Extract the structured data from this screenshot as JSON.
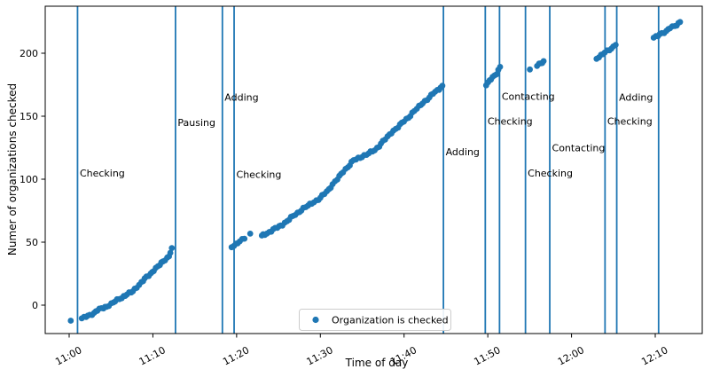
{
  "chart_data": {
    "type": "scatter",
    "title": "",
    "xlabel": "Time of day",
    "ylabel": "Numer of organizations checked",
    "legend": {
      "label": "Organization is checked",
      "position": "lower center",
      "marker": "dot",
      "marker_color": "#1f77b4"
    },
    "series_color": "#1f77b4",
    "grid": false,
    "x_axis": {
      "unit": "minutes after 11:00",
      "tick_minutes": [
        0,
        10,
        20,
        30,
        40,
        50,
        60,
        70
      ],
      "tick_labels": [
        "11:00",
        "11:10",
        "11:20",
        "11:30",
        "11:40",
        "11:50",
        "12:00",
        "12:10"
      ],
      "label_rotation_deg": 28
    },
    "y_axis": {
      "tick_values": [
        0,
        50,
        100,
        150,
        200
      ]
    },
    "xlim_minutes": [
      -2.9,
      75.7
    ],
    "ylim": [
      -22.7,
      237
    ],
    "series": [
      {
        "name": "Organization is checked",
        "segments": [
          {
            "name": "run-1",
            "points": [
              [
                1.5,
                -10.5
              ],
              [
                2.5,
                -8
              ],
              [
                3.4,
                -4
              ],
              [
                4.5,
                -1
              ],
              [
                5.5,
                3
              ],
              [
                6.5,
                7
              ],
              [
                7.6,
                11
              ],
              [
                8.6,
                18
              ],
              [
                9.7,
                25
              ],
              [
                10.8,
                32
              ],
              [
                11.9,
                39
              ],
              [
                12.3,
                44.5
              ]
            ]
          },
          {
            "name": "run-2",
            "points": [
              [
                19.4,
                46
              ],
              [
                19.9,
                48.5
              ],
              [
                20.4,
                51
              ],
              [
                20.9,
                53
              ]
            ]
          },
          {
            "name": "run-3",
            "points": [
              [
                23.0,
                55
              ],
              [
                23.6,
                57
              ],
              [
                24.4,
                60
              ],
              [
                25.5,
                64
              ],
              [
                27.0,
                72
              ],
              [
                28.5,
                79
              ],
              [
                30.0,
                85
              ],
              [
                31.0,
                92
              ],
              [
                32.0,
                100
              ],
              [
                33.0,
                108
              ],
              [
                34.0,
                115
              ],
              [
                35.0,
                118
              ],
              [
                36.5,
                123
              ],
              [
                37.5,
                130
              ],
              [
                38.5,
                137
              ],
              [
                39.5,
                143
              ],
              [
                40.5,
                149
              ],
              [
                41.5,
                156
              ],
              [
                42.5,
                162
              ],
              [
                43.5,
                168
              ],
              [
                44.6,
                174
              ]
            ]
          },
          {
            "name": "run-4",
            "points": [
              [
                49.8,
                175
              ],
              [
                50.2,
                178
              ],
              [
                50.6,
                181
              ],
              [
                51.0,
                184
              ],
              [
                51.5,
                189
              ]
            ]
          },
          {
            "name": "run-5",
            "points": [
              [
                55.9,
                190
              ],
              [
                56.3,
                192
              ],
              [
                56.7,
                193.5
              ]
            ]
          },
          {
            "name": "run-6",
            "points": [
              [
                63.0,
                196
              ],
              [
                63.5,
                198
              ],
              [
                64.0,
                200.5
              ],
              [
                64.5,
                203
              ],
              [
                65.0,
                205
              ],
              [
                65.3,
                207
              ]
            ]
          },
          {
            "name": "run-7",
            "points": [
              [
                69.8,
                212
              ],
              [
                70.3,
                214
              ],
              [
                70.8,
                216
              ],
              [
                71.3,
                217.5
              ],
              [
                71.8,
                220
              ],
              [
                72.3,
                221.5
              ],
              [
                73.0,
                225
              ]
            ]
          }
        ],
        "isolated_points": [
          [
            0.2,
            -12
          ],
          [
            21.6,
            56
          ],
          [
            55.0,
            187
          ]
        ]
      }
    ],
    "event_lines": [
      {
        "time": "11:01",
        "minutes": 1.0,
        "label": "Checking",
        "label_value": 105
      },
      {
        "time": "11:13",
        "minutes": 12.7,
        "label": "Pausing",
        "label_value": 145
      },
      {
        "time": "11:18",
        "minutes": 18.3,
        "label": "Adding",
        "label_value": 165
      },
      {
        "time": "11:20",
        "minutes": 19.7,
        "label": "Checking",
        "label_value": 104
      },
      {
        "time": "11:45",
        "minutes": 44.7,
        "label": "Adding",
        "label_value": 122
      },
      {
        "time": "11:50",
        "minutes": 49.7,
        "label": "Checking",
        "label_value": 146
      },
      {
        "time": "11:51",
        "minutes": 51.4,
        "label": "Contacting",
        "label_value": 166
      },
      {
        "time": "11:55",
        "minutes": 54.5,
        "label": "Checking",
        "label_value": 105
      },
      {
        "time": "11:57",
        "minutes": 57.4,
        "label": "Contacting",
        "label_value": 125
      },
      {
        "time": "12:04",
        "minutes": 64.0,
        "label": "Checking",
        "label_value": 146
      },
      {
        "time": "12:05",
        "minutes": 65.4,
        "label": "Adding",
        "label_value": 165
      },
      {
        "time": "12:10",
        "minutes": 70.4,
        "label": ""
      }
    ]
  }
}
